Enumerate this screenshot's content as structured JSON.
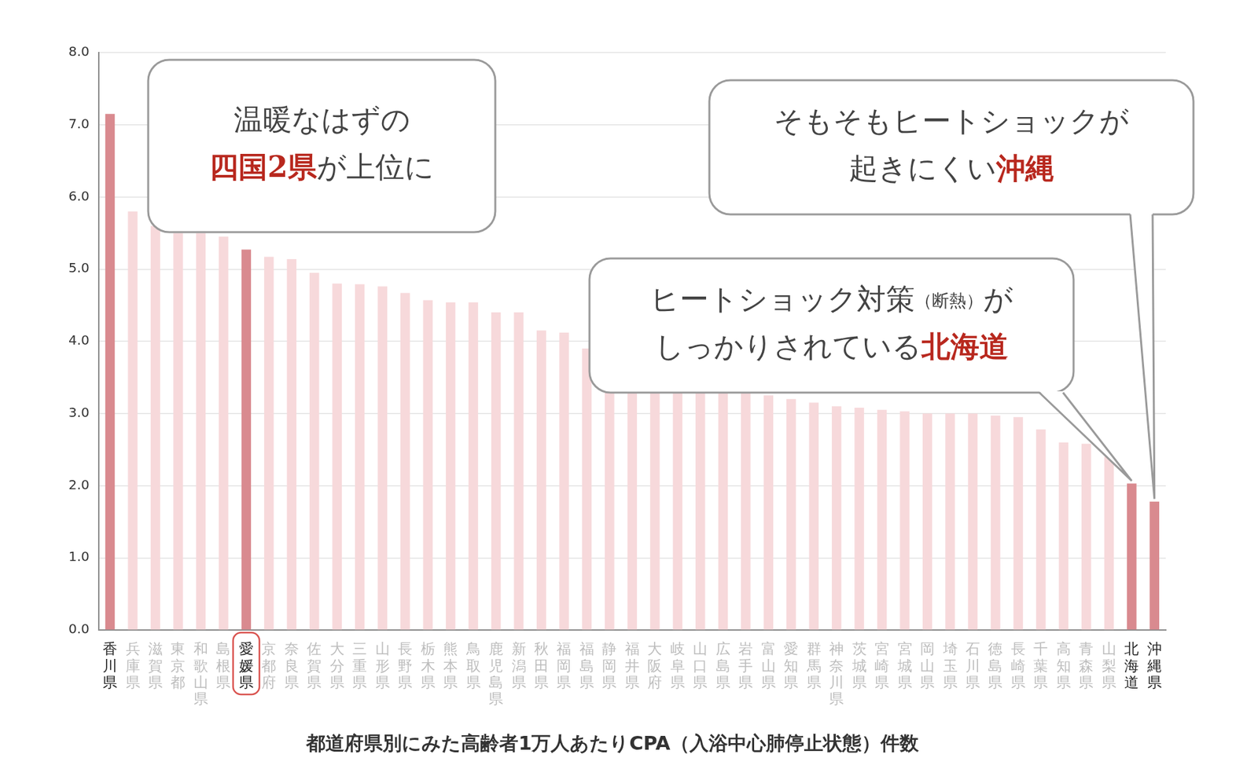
{
  "chart_data": {
    "type": "bar",
    "title": "都道府県別にみた高齢者1万人あたりCPA（入浴中心肺停止状態）件数",
    "categories": [
      "香川県",
      "兵庫県",
      "滋賀県",
      "東京都",
      "和歌山県",
      "島根県",
      "愛媛県",
      "京都府",
      "奈良県",
      "佐賀県",
      "大分県",
      "三重県",
      "山形県",
      "長野県",
      "栃木県",
      "熊本県",
      "鳥取県",
      "鹿児島県",
      "新潟県",
      "秋田県",
      "福岡県",
      "福島県",
      "静岡県",
      "福井県",
      "大阪府",
      "岐阜県",
      "山口県",
      "広島県",
      "岩手県",
      "富山県",
      "愛知県",
      "群馬県",
      "神奈川県",
      "茨城県",
      "宮崎県",
      "宮城県",
      "岡山県",
      "埼玉県",
      "石川県",
      "徳島県",
      "長崎県",
      "千葉県",
      "高知県",
      "青森県",
      "山梨県",
      "北海道",
      "沖縄県"
    ],
    "values": [
      7.15,
      5.8,
      5.6,
      5.5,
      5.5,
      5.45,
      5.27,
      5.17,
      5.14,
      4.95,
      4.8,
      4.79,
      4.76,
      4.67,
      4.57,
      4.54,
      4.54,
      4.4,
      4.4,
      4.15,
      4.12,
      3.9,
      3.7,
      3.6,
      3.5,
      3.45,
      3.4,
      3.35,
      3.3,
      3.25,
      3.2,
      3.15,
      3.1,
      3.08,
      3.05,
      3.03,
      3.0,
      3.0,
      3.0,
      2.97,
      2.95,
      2.78,
      2.6,
      2.58,
      2.4,
      2.03,
      1.78
    ],
    "colors": [
      "#d98a8f",
      "#f7d9db",
      "#f7d9db",
      "#f7d9db",
      "#f7d9db",
      "#f7d9db",
      "#d98a8f",
      "#f7d9db",
      "#f7d9db",
      "#f7d9db",
      "#f7d9db",
      "#f7d9db",
      "#f7d9db",
      "#f7d9db",
      "#f7d9db",
      "#f7d9db",
      "#f7d9db",
      "#f7d9db",
      "#f7d9db",
      "#f7d9db",
      "#f7d9db",
      "#f7d9db",
      "#f7d9db",
      "#f7d9db",
      "#f7d9db",
      "#f7d9db",
      "#f7d9db",
      "#f7d9db",
      "#f7d9db",
      "#f7d9db",
      "#f7d9db",
      "#f7d9db",
      "#f7d9db",
      "#f7d9db",
      "#f7d9db",
      "#f7d9db",
      "#f7d9db",
      "#f7d9db",
      "#f7d9db",
      "#f7d9db",
      "#f7d9db",
      "#f7d9db",
      "#f7d9db",
      "#f7d9db",
      "#f7d9db",
      "#d98a8f",
      "#d98a8f"
    ],
    "ylim": [
      0,
      8
    ],
    "yticks": [
      {
        "value": 0,
        "label": "0.0"
      },
      {
        "value": 1,
        "label": "1.0"
      },
      {
        "value": 2,
        "label": "2.0"
      },
      {
        "value": 3,
        "label": "3.0"
      },
      {
        "value": 4,
        "label": "4.0"
      },
      {
        "value": 5,
        "label": "5.0"
      },
      {
        "value": 6,
        "label": "6.0"
      },
      {
        "value": 7,
        "label": "7.0"
      },
      {
        "value": 8,
        "label": "8.0"
      }
    ],
    "grid": true,
    "annotations": [
      {
        "lines": [
          [
            {
              "text": "温暖なはずの"
            }
          ],
          [
            {
              "text": "四国2県",
              "color": "#b8281e"
            },
            {
              "text": "が上位に"
            }
          ]
        ]
      },
      {
        "lines": [
          [
            {
              "text": "そもそもヒートショックが"
            }
          ],
          [
            {
              "text": "起きにくい"
            },
            {
              "text": "沖縄",
              "color": "#b8281e"
            }
          ]
        ],
        "target": "沖縄県"
      },
      {
        "lines": [
          [
            {
              "text": "ヒートショック対策"
            },
            {
              "text": "（断熱）"
            },
            {
              "text": "が"
            }
          ],
          [
            {
              "text": "しっかりされている"
            },
            {
              "text": "北海道",
              "color": "#b8281e"
            }
          ]
        ],
        "target": "北海道"
      },
      {
        "target": "愛媛県",
        "marker": "rounded_box"
      }
    ]
  }
}
